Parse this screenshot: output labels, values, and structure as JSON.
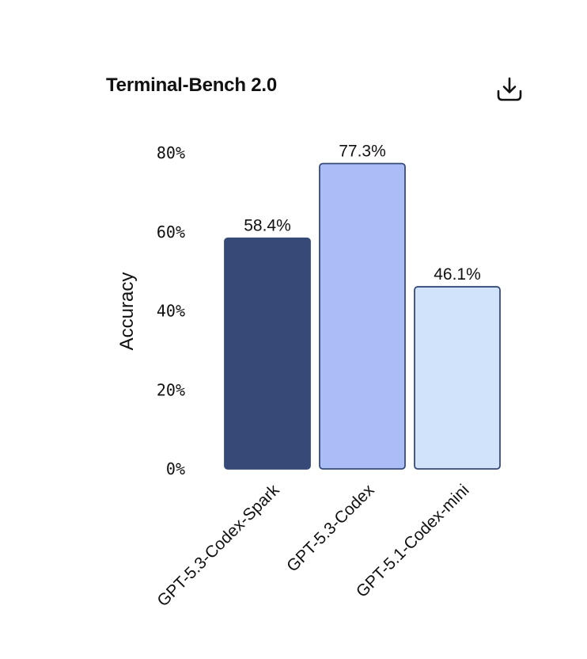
{
  "header": {
    "title": "Terminal-Bench 2.0",
    "download_icon": "download-icon"
  },
  "chart_data": {
    "type": "bar",
    "title": "Terminal-Bench 2.0",
    "xlabel": "",
    "ylabel": "Accuracy",
    "ylim": [
      0,
      80
    ],
    "yticks": [
      0,
      20,
      40,
      60,
      80
    ],
    "ytick_labels": [
      "0%",
      "20%",
      "40%",
      "60%",
      "80%"
    ],
    "categories": [
      "GPT-5.3-Codex-Spark",
      "GPT-5.3-Codex",
      "GPT-5.1-Codex-mini"
    ],
    "values": [
      58.4,
      77.3,
      46.1
    ],
    "value_labels": [
      "58.4%",
      "77.3%",
      "46.1%"
    ],
    "colors": [
      "#364a78",
      "#abbdf7",
      "#d1e2fb"
    ],
    "border_color": "#364a78",
    "grid": false,
    "legend": "none"
  }
}
